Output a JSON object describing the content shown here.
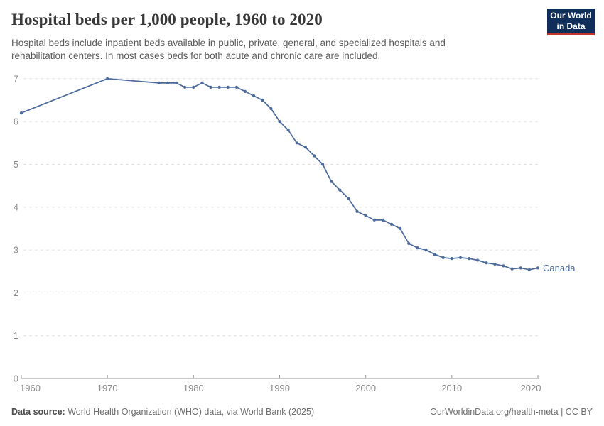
{
  "header": {
    "title": "Hospital beds per 1,000 people, 1960 to 2020",
    "subtitle_lines": [
      "Hospital beds include inpatient beds available in public, private, general, and specialized hospitals and",
      "rehabilitation centers. In most cases beds for both acute and chronic care are included."
    ],
    "logo": {
      "line1": "Our World",
      "line2": "in Data",
      "bg_color": "#0f2e5a",
      "accent_color": "#c0362c"
    }
  },
  "footer": {
    "datasource_label": "Data source:",
    "datasource_text": " World Health Organization (WHO) data, via World Bank (2025)",
    "attribution": "OurWorldinData.org/health-meta | CC BY"
  },
  "chart_data": {
    "type": "line",
    "title": "Hospital beds per 1,000 people, 1960 to 2020",
    "xlabel": "",
    "ylabel": "",
    "xlim": [
      1960,
      2020
    ],
    "ylim": [
      0,
      7
    ],
    "x_ticks": [
      1960,
      1970,
      1980,
      1990,
      2000,
      2010,
      2020
    ],
    "y_ticks": [
      0,
      1,
      2,
      3,
      4,
      5,
      6,
      7
    ],
    "grid": "horizontal-dashed",
    "legend_position": "end-of-line",
    "series": [
      {
        "name": "Canada",
        "color": "#4c6a9c",
        "points": [
          [
            1960,
            6.2
          ],
          [
            1970,
            7.0
          ],
          [
            1976,
            6.9
          ],
          [
            1977,
            6.9
          ],
          [
            1978,
            6.9
          ],
          [
            1979,
            6.8
          ],
          [
            1980,
            6.8
          ],
          [
            1981,
            6.9
          ],
          [
            1982,
            6.8
          ],
          [
            1983,
            6.8
          ],
          [
            1984,
            6.8
          ],
          [
            1985,
            6.8
          ],
          [
            1986,
            6.7
          ],
          [
            1987,
            6.6
          ],
          [
            1988,
            6.5
          ],
          [
            1989,
            6.3
          ],
          [
            1990,
            6.0
          ],
          [
            1991,
            5.8
          ],
          [
            1992,
            5.5
          ],
          [
            1993,
            5.4
          ],
          [
            1994,
            5.2
          ],
          [
            1995,
            5.0
          ],
          [
            1996,
            4.6
          ],
          [
            1997,
            4.4
          ],
          [
            1998,
            4.2
          ],
          [
            1999,
            3.9
          ],
          [
            2000,
            3.8
          ],
          [
            2001,
            3.7
          ],
          [
            2002,
            3.7
          ],
          [
            2003,
            3.6
          ],
          [
            2004,
            3.5
          ],
          [
            2005,
            3.15
          ],
          [
            2006,
            3.05
          ],
          [
            2007,
            3.0
          ],
          [
            2008,
            2.9
          ],
          [
            2009,
            2.82
          ],
          [
            2010,
            2.8
          ],
          [
            2011,
            2.82
          ],
          [
            2012,
            2.8
          ],
          [
            2013,
            2.76
          ],
          [
            2014,
            2.7
          ],
          [
            2015,
            2.67
          ],
          [
            2016,
            2.63
          ],
          [
            2017,
            2.56
          ],
          [
            2018,
            2.58
          ],
          [
            2019,
            2.54
          ],
          [
            2020,
            2.58
          ]
        ]
      }
    ]
  }
}
